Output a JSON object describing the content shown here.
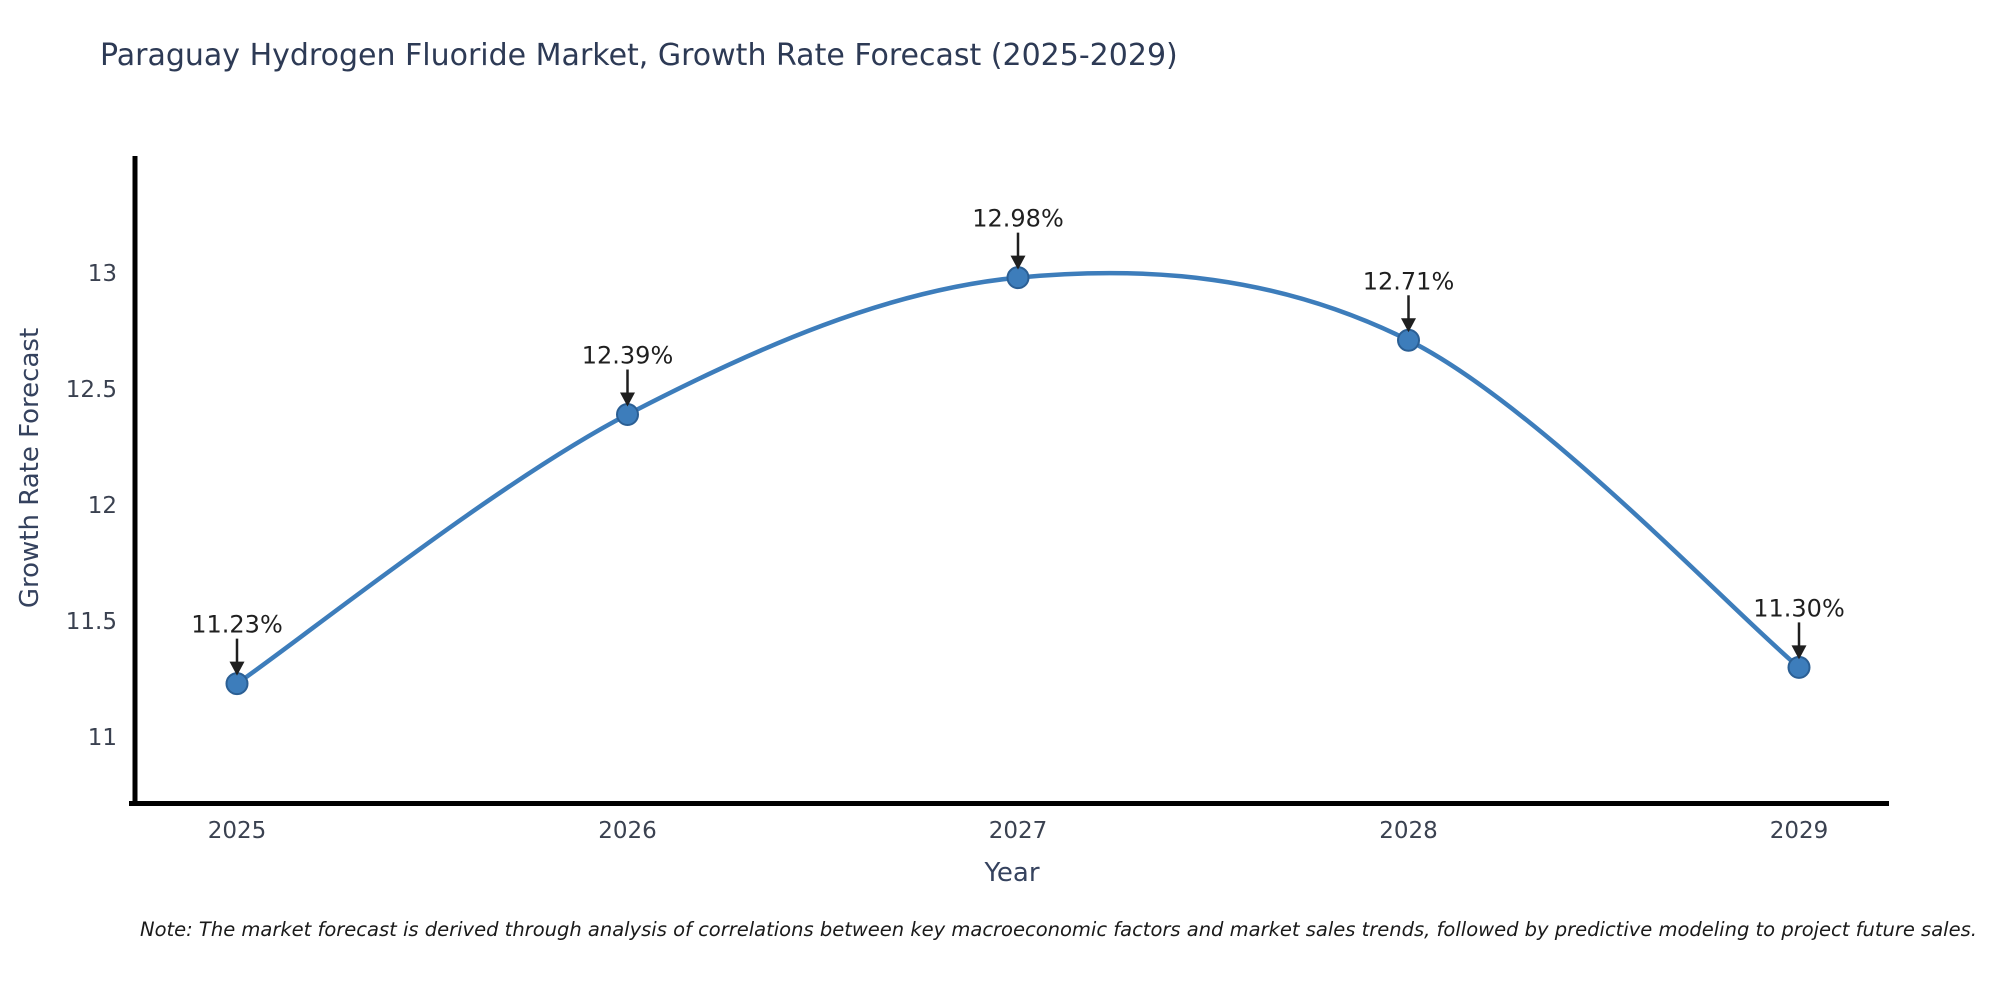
{
  "chart_data": {
    "type": "line",
    "title": "Paraguay Hydrogen Fluoride Market, Growth Rate Forecast (2025-2029)",
    "xlabel": "Year",
    "ylabel": "Growth Rate Forecast",
    "x": [
      2025,
      2026,
      2027,
      2028,
      2029
    ],
    "values": [
      11.23,
      12.39,
      12.98,
      12.71,
      11.3
    ],
    "point_labels": [
      "11.23%",
      "12.39%",
      "12.98%",
      "12.71%",
      "11.30%"
    ],
    "xticks": [
      "2025",
      "2026",
      "2027",
      "2028",
      "2029"
    ],
    "yticks": [
      "13",
      "12.5",
      "12",
      "11.5",
      "11"
    ],
    "ylim": [
      10.7,
      13.5
    ],
    "grid": false,
    "legend_position": "none",
    "line_color": "#3d7dbb",
    "marker_edge_color": "#2b5f94",
    "axis_color": "#000000",
    "tick_color": "#3a4150",
    "annotation_color": "#1f1f1f",
    "title_color": "#2d3a55"
  },
  "note": "Note: The market forecast is derived through analysis of correlations between key macroeconomic factors and market sales trends, followed by predictive modeling to project future sales."
}
